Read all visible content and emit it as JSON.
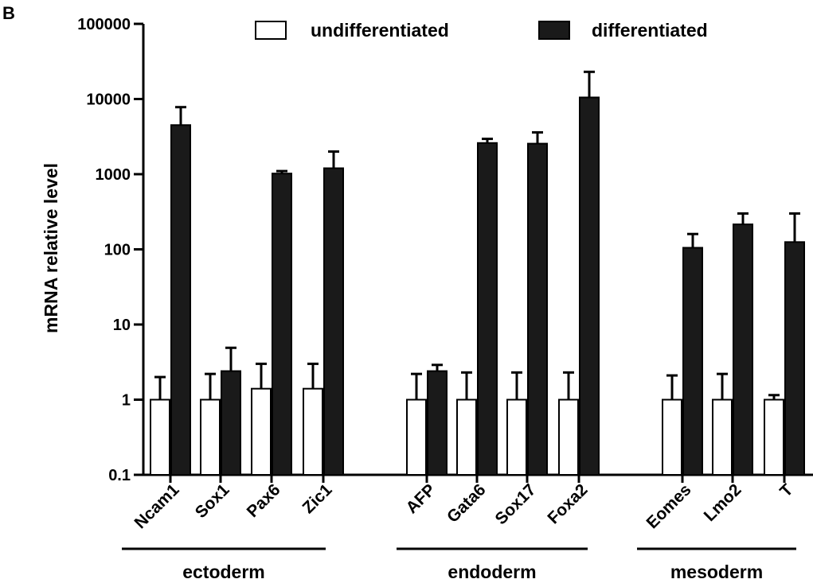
{
  "panel_label": "B",
  "chart_data": {
    "type": "bar",
    "yscale": "log",
    "ylabel": "mRNA relative level",
    "xlabel": "",
    "ylim": [
      0.1,
      100000
    ],
    "yticks": [
      0.1,
      1,
      10,
      100,
      1000,
      10000,
      100000
    ],
    "ytick_labels": [
      "0.1",
      "1",
      "10",
      "100",
      "1000",
      "10000",
      "100000"
    ],
    "legend_position": "top",
    "categories": [
      "Ncam1",
      "Sox1",
      "Pax6",
      "Zic1",
      "AFP",
      "Gata6",
      "Sox17",
      "Foxa2",
      "Eomes",
      "Lmo2",
      "T"
    ],
    "groups": [
      {
        "label": "ectoderm",
        "categories": [
          "Ncam1",
          "Sox1",
          "Pax6",
          "Zic1"
        ]
      },
      {
        "label": "endoderm",
        "categories": [
          "AFP",
          "Gata6",
          "Sox17",
          "Foxa2"
        ]
      },
      {
        "label": "mesoderm",
        "categories": [
          "Eomes",
          "Lmo2",
          "T"
        ]
      }
    ],
    "series": [
      {
        "name": "undifferentiated",
        "color": "#ffffff",
        "edge": "#000000",
        "values": [
          1,
          1,
          1.4,
          1.4,
          1,
          1,
          1,
          1,
          1,
          1,
          1
        ],
        "error_upper": [
          2.0,
          2.2,
          3.0,
          3.0,
          2.2,
          2.3,
          2.3,
          2.3,
          2.1,
          2.2,
          1.15
        ]
      },
      {
        "name": "differentiated",
        "color": "#1a1a1a",
        "edge": "#000000",
        "values": [
          4500,
          2.4,
          1020,
          1200,
          2.4,
          2600,
          2550,
          10500,
          105,
          215,
          125
        ],
        "error_upper": [
          7800,
          4.9,
          1100,
          2000,
          2.9,
          2950,
          3600,
          23000,
          160,
          300,
          300
        ]
      }
    ]
  }
}
